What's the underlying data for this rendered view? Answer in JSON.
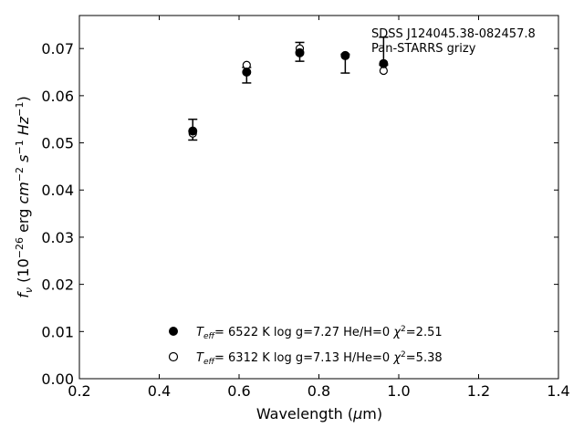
{
  "chart_data": {
    "type": "scatter",
    "title": "",
    "annotation": [
      "SDSS J124045.38-082457.8",
      "Pan-STARRS grizy"
    ],
    "xlabel": "Wavelength (μm)",
    "ylabel": "fν (10⁻²⁶ erg cm⁻² s⁻¹ Hz⁻¹)",
    "xlim": [
      0.2,
      1.4
    ],
    "ylim": [
      0.0,
      0.077
    ],
    "xticks": [
      "0.2",
      "0.4",
      "0.6",
      "0.8",
      "1.0",
      "1.2",
      "1.4"
    ],
    "yticks": [
      "0.00",
      "0.01",
      "0.02",
      "0.03",
      "0.04",
      "0.05",
      "0.06",
      "0.07"
    ],
    "observed": {
      "x": [
        0.484,
        0.619,
        0.752,
        0.866,
        0.962
      ],
      "y": [
        0.0528,
        0.065,
        0.0692,
        0.0685,
        0.067
      ],
      "yerr_low": [
        0.0506,
        0.0627,
        0.0673,
        0.0648,
        0.0665
      ],
      "yerr_high": [
        0.055,
        0.066,
        0.0713,
        0.0688,
        0.0724
      ]
    },
    "series": [
      {
        "name": "He/H=0",
        "marker": "filled-circle",
        "x": [
          0.484,
          0.619,
          0.752,
          0.866,
          0.962
        ],
        "y": [
          0.0525,
          0.065,
          0.0691,
          0.0685,
          0.0668
        ]
      },
      {
        "name": "H/He=0",
        "marker": "open-circle",
        "x": [
          0.484,
          0.619,
          0.752,
          0.866,
          0.962
        ],
        "y": [
          0.052,
          0.0665,
          0.07,
          0.0685,
          0.0653
        ]
      }
    ],
    "legend": [
      {
        "teff": "6522 K",
        "logg": "log g=7.27",
        "comp": "He/H=0",
        "chi2": "=2.51"
      },
      {
        "teff": "6312 K",
        "logg": "log g=7.13",
        "comp": "H/He=0",
        "chi2": "=5.38"
      }
    ],
    "legend_position": "lower-center",
    "grid": false
  }
}
